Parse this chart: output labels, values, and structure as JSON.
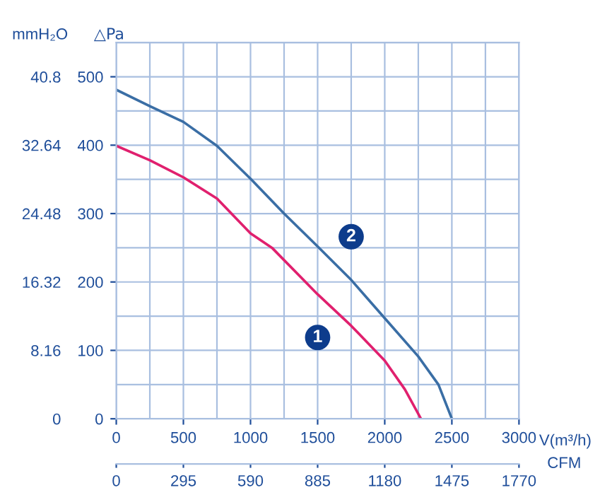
{
  "chart_data": {
    "type": "line",
    "xlabel": "V(m³/h)",
    "ylabel": "△Pa",
    "y2label": "mmH₂O",
    "x2label": "CFM",
    "xlim": [
      0,
      3000
    ],
    "xticks": [
      0,
      500,
      1000,
      1500,
      2000,
      2500,
      3000
    ],
    "x2lim": [
      0,
      1770
    ],
    "x2ticks": [
      0,
      295,
      590,
      885,
      1180,
      1475,
      1770
    ],
    "ylim": [
      0,
      550
    ],
    "yticks": [
      0,
      100,
      200,
      300,
      400,
      500
    ],
    "y2lim": [
      0,
      44.88
    ],
    "y2ticks": [
      0,
      8.16,
      16.32,
      24.48,
      32.64,
      40.8
    ],
    "grid": true,
    "legend": false,
    "marker": "none",
    "line_style": "solid",
    "series": [
      {
        "name": "1",
        "color": "#e0206e",
        "x": [
          0,
          250,
          500,
          750,
          1000,
          1160,
          1500,
          1750,
          2000,
          2150,
          2270
        ],
        "values": [
          399,
          378,
          353,
          322,
          271,
          250,
          182,
          136,
          85,
          43,
          0
        ]
      },
      {
        "name": "2",
        "color": "#3a6ea5",
        "x": [
          0,
          250,
          500,
          750,
          1000,
          1250,
          1500,
          1750,
          2000,
          2250,
          2400,
          2500
        ],
        "values": [
          481,
          457,
          434,
          399,
          351,
          300,
          252,
          203,
          147,
          91,
          50,
          0
        ]
      }
    ]
  }
}
